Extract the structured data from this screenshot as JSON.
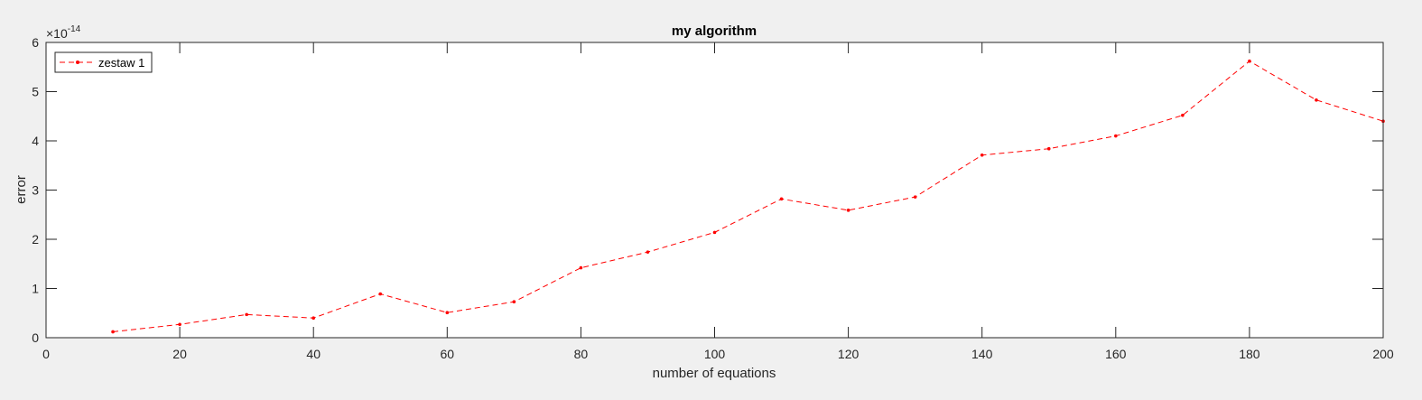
{
  "chart_data": {
    "type": "line",
    "title": "my algorithm",
    "xlabel": "number of equations",
    "ylabel": "error",
    "xlim": [
      0,
      200
    ],
    "ylim": [
      0,
      6e-14
    ],
    "x_ticks": [
      0,
      20,
      40,
      60,
      80,
      100,
      120,
      140,
      160,
      180,
      200
    ],
    "y_ticks": [
      0,
      1,
      2,
      3,
      4,
      5,
      6
    ],
    "y_exponent_base": "×10",
    "y_exponent": "-14",
    "grid": false,
    "legend_position": "top-left",
    "series": [
      {
        "name": "zestaw 1",
        "color": "#ff0000",
        "line_style": "dashed",
        "marker": "point",
        "x": [
          10,
          20,
          30,
          40,
          50,
          60,
          70,
          80,
          90,
          100,
          110,
          120,
          130,
          140,
          150,
          160,
          170,
          180,
          190,
          200
        ],
        "y": [
          1.2e-15,
          2.7e-15,
          4.7e-15,
          4e-15,
          8.9e-15,
          5.1e-15,
          7.3e-15,
          1.42e-14,
          1.74e-14,
          2.14e-14,
          2.82e-14,
          2.59e-14,
          2.86e-14,
          3.71e-14,
          3.84e-14,
          4.1e-14,
          4.52e-14,
          5.62e-14,
          4.83e-14,
          4.4e-14
        ]
      }
    ]
  }
}
